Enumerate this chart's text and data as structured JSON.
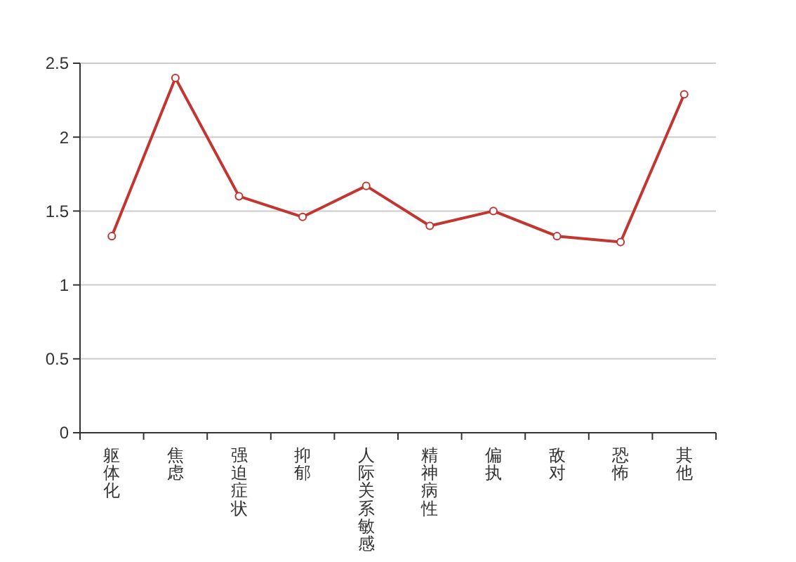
{
  "chart_data": {
    "type": "line",
    "categories": [
      "躯体化",
      "焦虑",
      "强迫症状",
      "抑郁",
      "人际关系敏感",
      "精神病性",
      "偏执",
      "敌对",
      "恐怖",
      "其他"
    ],
    "series": [
      {
        "color": "#c23531",
        "values": [
          1.33,
          2.4,
          1.6,
          1.46,
          1.67,
          1.4,
          1.5,
          1.33,
          1.29,
          2.29
        ]
      }
    ],
    "ylim": [
      0,
      2.5
    ],
    "yticks": [
      0,
      0.5,
      1,
      1.5,
      2,
      2.5
    ],
    "grid": "y",
    "marker": "circle"
  }
}
